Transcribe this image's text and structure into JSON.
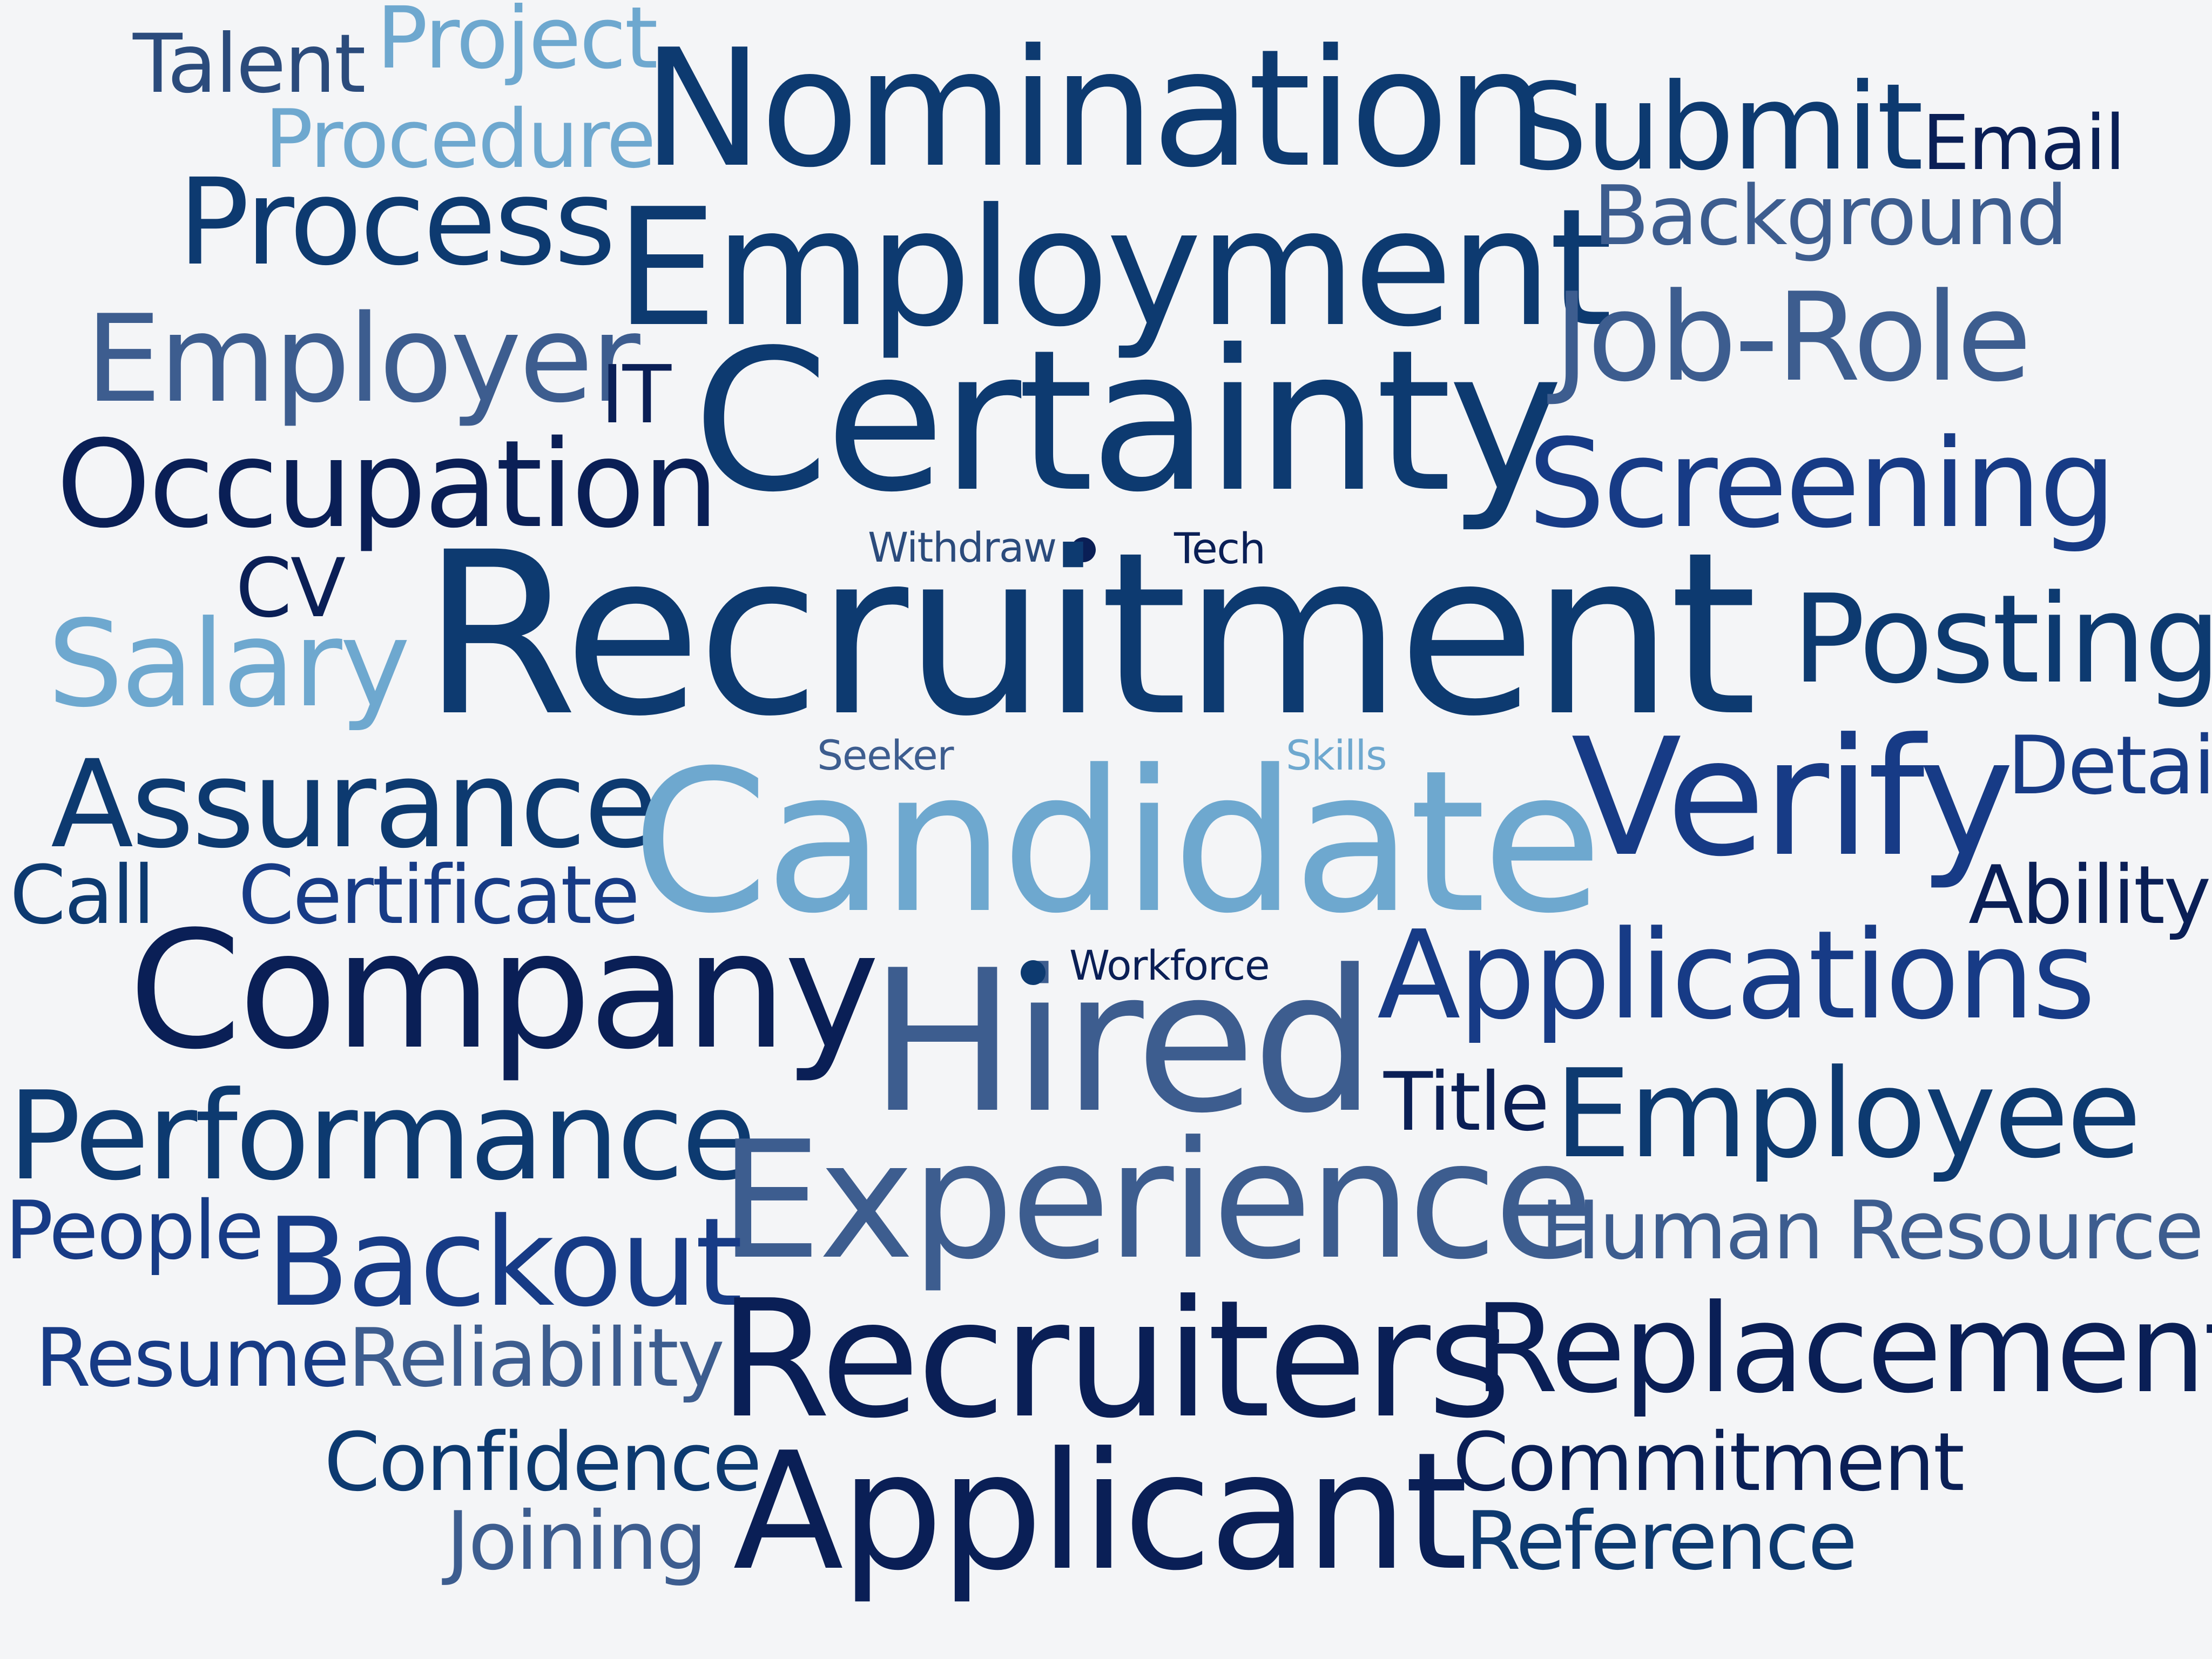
{
  "words": [
    {
      "key": "talent",
      "text": "Talent",
      "color": "#2b4b7c"
    },
    {
      "key": "project",
      "text": "Project",
      "color": "#6ea8cf"
    },
    {
      "key": "procedure",
      "text": "Procedure",
      "color": "#6ea8cf"
    },
    {
      "key": "nomination",
      "text": "Nomination",
      "color": "#0d3a70"
    },
    {
      "key": "submit",
      "text": "Submit",
      "color": "#0d3a70"
    },
    {
      "key": "email",
      "text": "Email",
      "color": "#0a1f56"
    },
    {
      "key": "process",
      "text": "Process",
      "color": "#0d3a70"
    },
    {
      "key": "employment",
      "text": "Employment",
      "color": "#0d3a70"
    },
    {
      "key": "background",
      "text": "Background",
      "color": "#3d5d8f"
    },
    {
      "key": "employer",
      "text": "Employer",
      "color": "#3d5d8f"
    },
    {
      "key": "it",
      "text": "IT",
      "color": "#0a1f56"
    },
    {
      "key": "certainty",
      "text": "Certainty",
      "color": "#0d3a70"
    },
    {
      "key": "job_role",
      "text": "Job-Role",
      "color": "#3d5d8f"
    },
    {
      "key": "occupation",
      "text": "Occupation",
      "color": "#0a1f56"
    },
    {
      "key": "screening",
      "text": "Screening",
      "color": "#173b86"
    },
    {
      "key": "withdraw",
      "text": "Withdraw",
      "color": "#2b4b7c"
    },
    {
      "key": "tech",
      "text": "Tech",
      "color": "#0a1f56"
    },
    {
      "key": "cv",
      "text": "CV",
      "color": "#0a1f56"
    },
    {
      "key": "recruitment",
      "text": "Recruitment",
      "color": "#0d3a70"
    },
    {
      "key": "salary",
      "text": "Salary",
      "color": "#6ea8cf"
    },
    {
      "key": "posting",
      "text": "Posting",
      "color": "#0d3a70"
    },
    {
      "key": "seeker",
      "text": "Seeker",
      "color": "#3d5d8f"
    },
    {
      "key": "skills",
      "text": "Skills",
      "color": "#6ea8cf"
    },
    {
      "key": "assurance",
      "text": "Assurance",
      "color": "#0d3a70"
    },
    {
      "key": "candidate",
      "text": "Candidate",
      "color": "#6ea8cf"
    },
    {
      "key": "verify",
      "text": "Verify",
      "color": "#173b86"
    },
    {
      "key": "detail",
      "text": "Detail",
      "color": "#173b86"
    },
    {
      "key": "call",
      "text": "Call",
      "color": "#0d3a70"
    },
    {
      "key": "certificate",
      "text": "Certificate",
      "color": "#173b86"
    },
    {
      "key": "ability",
      "text": "Ability",
      "color": "#0a1f56"
    },
    {
      "key": "company",
      "text": "Company",
      "color": "#0a1f56"
    },
    {
      "key": "hired",
      "text": "Hired",
      "color": "#3d5d8f"
    },
    {
      "key": "workforce",
      "text": "Workforce",
      "color": "#0a1f56"
    },
    {
      "key": "applications",
      "text": "Applications",
      "color": "#173b86"
    },
    {
      "key": "title",
      "text": "Title",
      "color": "#0a1f56"
    },
    {
      "key": "employee",
      "text": "Employee",
      "color": "#0d3a70"
    },
    {
      "key": "performance",
      "text": "Performance",
      "color": "#0d3a70"
    },
    {
      "key": "experience",
      "text": "Experience",
      "color": "#3d5d8f"
    },
    {
      "key": "people",
      "text": "People",
      "color": "#173b86"
    },
    {
      "key": "backout",
      "text": "Backout",
      "color": "#173b86"
    },
    {
      "key": "human_resource",
      "text": "Human Resource",
      "color": "#3d5d8f"
    },
    {
      "key": "resume",
      "text": "Resume",
      "color": "#173b86"
    },
    {
      "key": "reliability",
      "text": "Reliability",
      "color": "#3d5d8f"
    },
    {
      "key": "recruiters",
      "text": "Recruiters",
      "color": "#0a1f56"
    },
    {
      "key": "replacement",
      "text": "Replacement",
      "color": "#0a1f56"
    },
    {
      "key": "confidence",
      "text": "Confidence",
      "color": "#0d3a70"
    },
    {
      "key": "applicant",
      "text": "Applicant",
      "color": "#0a1f56"
    },
    {
      "key": "commitment",
      "text": "Commitment",
      "color": "#0a1f56"
    },
    {
      "key": "joining",
      "text": "Joining",
      "color": "#3d5d8f"
    },
    {
      "key": "reference",
      "text": "Reference",
      "color": "#0d3a70"
    }
  ]
}
